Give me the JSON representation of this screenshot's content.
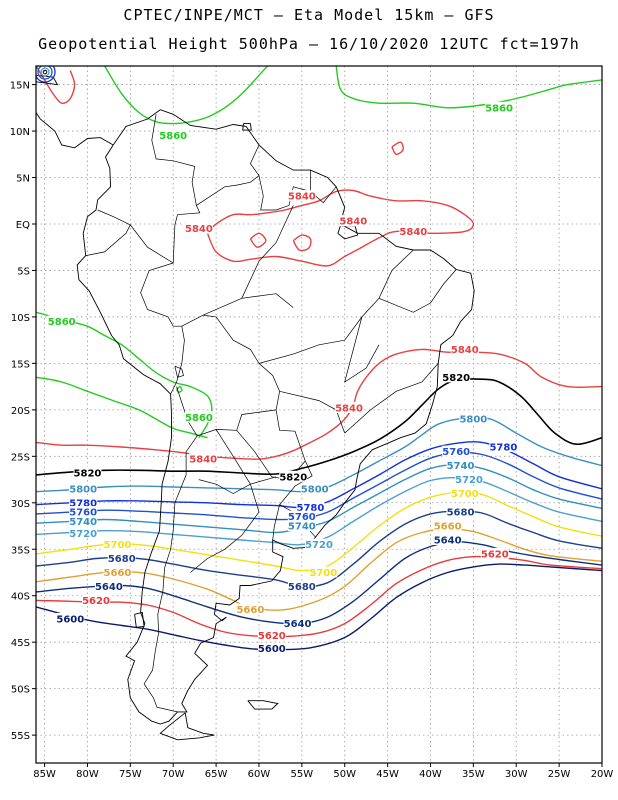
{
  "header": {
    "title_line1": "CPTEC/INPE/MCT –  Eta Model 15km – GFS",
    "title_line2": "Geopotential Height 500hPa – 16/10/2020 12UTC fct=197h"
  },
  "map": {
    "lon_range": [
      -86,
      -20
    ],
    "lat_range": [
      17,
      -58
    ],
    "lon_ticks": [
      "85W",
      "80W",
      "75W",
      "70W",
      "65W",
      "60W",
      "55W",
      "50W",
      "45W",
      "40W",
      "35W",
      "30W",
      "25W",
      "20W"
    ],
    "lat_ticks": [
      "15N",
      "10N",
      "5N",
      "EQ",
      "5S",
      "10S",
      "15S",
      "20S",
      "25S",
      "30S",
      "35S",
      "40S",
      "45S",
      "50S",
      "55S"
    ],
    "gridlines": "dotted"
  },
  "chart_data": {
    "type": "contour",
    "variable": "Geopotential Height 500hPa",
    "levels": [
      5600,
      5620,
      5640,
      5660,
      5680,
      5700,
      5720,
      5740,
      5760,
      5780,
      5800,
      5820,
      5840,
      5860
    ],
    "colors": {
      "5600": "#0a1a6b",
      "5620": "#e83a3a",
      "5640": "#0d2f80",
      "5660": "#e0a030",
      "5680": "#1c3f8a",
      "5700": "#f2e010",
      "5720": "#4aa0d0",
      "5740": "#3090c0",
      "5760": "#2050d0",
      "5780": "#1030e0",
      "5800": "#3a8fbf",
      "5820": "#000000",
      "5840": "#e84040",
      "5860": "#20cc20",
      "coast": "#000000"
    },
    "labels": [
      {
        "value": "5860",
        "lon": -32,
        "lat": 12.5
      },
      {
        "value": "5860",
        "lon": -70,
        "lat": 9.5
      },
      {
        "value": "5840",
        "lon": -67,
        "lat": -0.5
      },
      {
        "value": "5840",
        "lon": -49,
        "lat": 0.3
      },
      {
        "value": "5840",
        "lon": -55,
        "lat": 3
      },
      {
        "value": "5840",
        "lon": -42,
        "lat": -0.8
      },
      {
        "value": "5860",
        "lon": -83,
        "lat": -10.5
      },
      {
        "value": "5840",
        "lon": -36,
        "lat": -13.5
      },
      {
        "value": "5820",
        "lon": -37,
        "lat": -16.5
      },
      {
        "value": "5840",
        "lon": -49.5,
        "lat": -19.8
      },
      {
        "value": "5860",
        "lon": -67,
        "lat": -20.8
      },
      {
        "value": "5800",
        "lon": -35,
        "lat": -21
      },
      {
        "value": "5780",
        "lon": -31.5,
        "lat": -24
      },
      {
        "value": "5760",
        "lon": -37,
        "lat": -24.5
      },
      {
        "value": "5740",
        "lon": -36.5,
        "lat": -26
      },
      {
        "value": "5720",
        "lon": -35.5,
        "lat": -27.5
      },
      {
        "value": "5840",
        "lon": -66.5,
        "lat": -25.3
      },
      {
        "value": "5820",
        "lon": -80,
        "lat": -26.8
      },
      {
        "value": "5820",
        "lon": -56,
        "lat": -27.2
      },
      {
        "value": "5800",
        "lon": -80.5,
        "lat": -28.5
      },
      {
        "value": "5800",
        "lon": -53.5,
        "lat": -28.5
      },
      {
        "value": "5780",
        "lon": -80.5,
        "lat": -30
      },
      {
        "value": "5760",
        "lon": -80.5,
        "lat": -31
      },
      {
        "value": "5740",
        "lon": -80.5,
        "lat": -32
      },
      {
        "value": "5720",
        "lon": -80.5,
        "lat": -33.3
      },
      {
        "value": "5780",
        "lon": -54,
        "lat": -30.5
      },
      {
        "value": "5760",
        "lon": -55,
        "lat": -31.5
      },
      {
        "value": "5740",
        "lon": -55,
        "lat": -32.5
      },
      {
        "value": "5700",
        "lon": -36,
        "lat": -29
      },
      {
        "value": "5680",
        "lon": -36.5,
        "lat": -31
      },
      {
        "value": "5720",
        "lon": -53,
        "lat": -34.5
      },
      {
        "value": "5660",
        "lon": -38,
        "lat": -32.5
      },
      {
        "value": "5640",
        "lon": -38,
        "lat": -34
      },
      {
        "value": "5620",
        "lon": -32.5,
        "lat": -35.5
      },
      {
        "value": "5700",
        "lon": -76.5,
        "lat": -34.5
      },
      {
        "value": "5680",
        "lon": -76,
        "lat": -36
      },
      {
        "value": "5660",
        "lon": -76.5,
        "lat": -37.5
      },
      {
        "value": "5640",
        "lon": -77.5,
        "lat": -39
      },
      {
        "value": "5620",
        "lon": -79,
        "lat": -40.5
      },
      {
        "value": "5600",
        "lon": -82,
        "lat": -42.5
      },
      {
        "value": "5700",
        "lon": -52.5,
        "lat": -37.5
      },
      {
        "value": "5680",
        "lon": -55,
        "lat": -39
      },
      {
        "value": "5660",
        "lon": -61,
        "lat": -41.5
      },
      {
        "value": "5640",
        "lon": -55.5,
        "lat": -43
      },
      {
        "value": "5620",
        "lon": -58.5,
        "lat": -44.3
      },
      {
        "value": "5600",
        "lon": -58.5,
        "lat": -45.7
      }
    ]
  }
}
